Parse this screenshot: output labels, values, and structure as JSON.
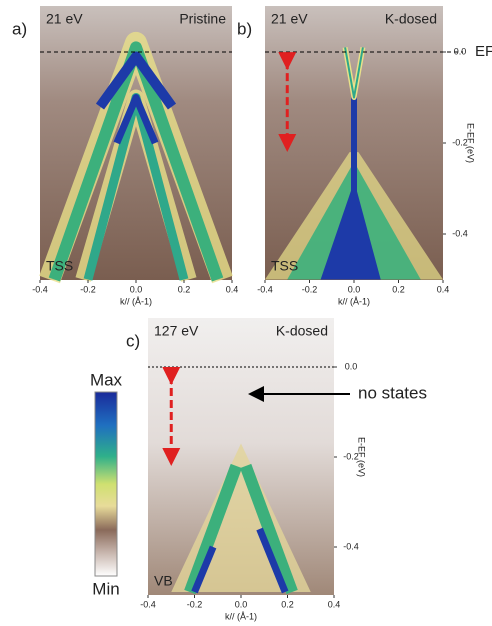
{
  "panels": [
    {
      "label": "a)",
      "photon_energy": "21 eV",
      "condition": "Pristine",
      "band_label": "TSS",
      "x_label": "k// (Å-1)",
      "xticks": [
        -0.4,
        -0.2,
        {
          "value": 0,
          "label": "0.0"
        },
        0.2,
        0.4
      ]
    },
    {
      "label": "b)",
      "photon_energy": "21 eV",
      "condition": "K-dosed",
      "band_label": "TSS",
      "x_label": "k// (Å-1)",
      "xticks": [
        -0.4,
        -0.2,
        {
          "value": 0,
          "label": "0.0"
        },
        0.2,
        0.4
      ],
      "y_label": "E-EF (eV)",
      "yticks": [
        {
          "value": 0,
          "label": "0.0"
        },
        -0.2,
        -0.4
      ]
    },
    {
      "label": "c)",
      "photon_energy": "127 eV",
      "condition": "K-dosed",
      "band_label": "VB",
      "x_label": "k// (Å-1)",
      "xticks": [
        -0.4,
        -0.2,
        {
          "value": 0,
          "label": "0.0"
        },
        0.2,
        0.4
      ],
      "y_label": "E-EF (eV)",
      "yticks": [
        {
          "value": 0,
          "label": "0.0"
        },
        -0.2,
        -0.4
      ]
    }
  ],
  "fermi_label": "EF",
  "colorbar": {
    "max": "Max",
    "min": "Min"
  },
  "annotation": "no states"
}
